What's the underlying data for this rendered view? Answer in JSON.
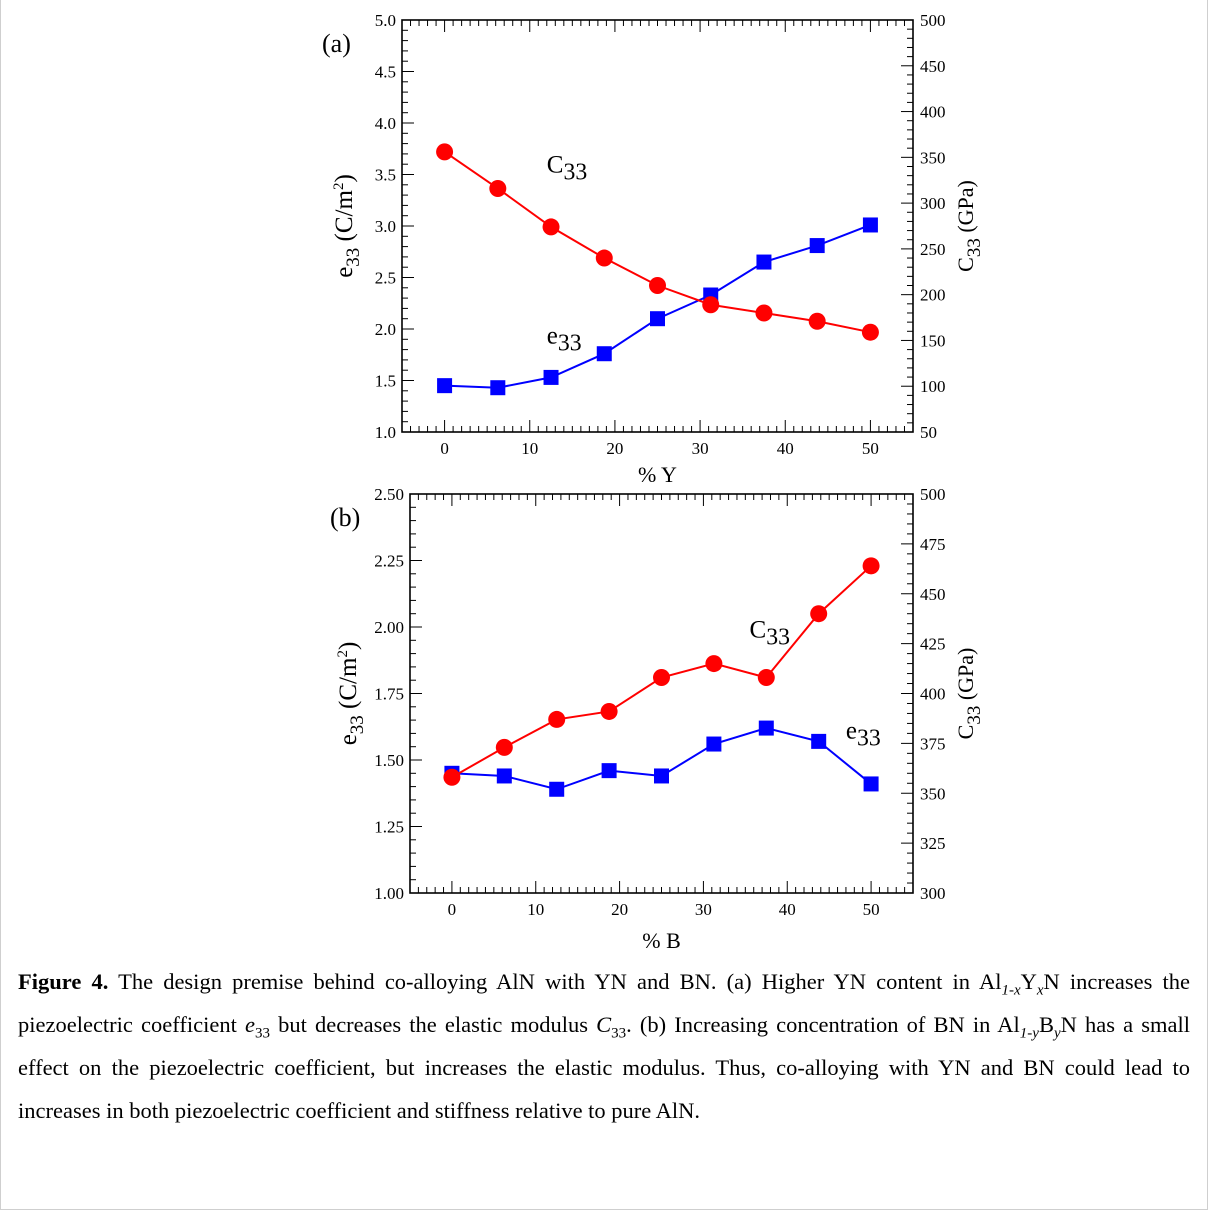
{
  "chart_data": [
    {
      "type": "line",
      "panel_label": "(a)",
      "xlabel": "% Y",
      "ylabel": "e33 (C/m2)",
      "y2label": "C33 (GPa)",
      "xlim": [
        -5,
        55
      ],
      "ylim": [
        1.0,
        5.0
      ],
      "y2lim": [
        50,
        500
      ],
      "x_ticks": [
        0,
        10,
        20,
        30,
        40,
        50
      ],
      "y_ticks": [
        "1.0",
        "1.5",
        "2.0",
        "2.5",
        "3.0",
        "3.5",
        "4.0",
        "4.5",
        "5.0"
      ],
      "y2_ticks": [
        "50",
        "100",
        "150",
        "200",
        "250",
        "300",
        "350",
        "400",
        "450",
        "500"
      ],
      "x": [
        0,
        6.25,
        12.5,
        18.75,
        25,
        31.25,
        37.5,
        43.75,
        50
      ],
      "series": [
        {
          "name": "e33",
          "axis": "left",
          "color": "#0000ff",
          "marker": "square",
          "values": [
            1.45,
            1.43,
            1.53,
            1.76,
            2.1,
            2.33,
            2.65,
            2.81,
            3.01
          ]
        },
        {
          "name": "C33",
          "axis": "right",
          "color": "#ff0000",
          "marker": "circle",
          "values": [
            356,
            316,
            274,
            240,
            210,
            189,
            180,
            171,
            159
          ]
        }
      ],
      "annotations": [
        {
          "text": "C33",
          "x": 12.0,
          "y": 3.52
        },
        {
          "text": "e33",
          "x": 12.0,
          "y": 1.86
        }
      ]
    },
    {
      "type": "line",
      "panel_label": "(b)",
      "xlabel": "% B",
      "ylabel": "e33 (C/m2)",
      "y2label": "C33 (GPa)",
      "xlim": [
        -5,
        55
      ],
      "ylim": [
        1.0,
        2.5
      ],
      "y2lim": [
        300,
        500
      ],
      "x_ticks": [
        0,
        10,
        20,
        30,
        40,
        50
      ],
      "y_ticks": [
        "1.00",
        "1.25",
        "1.50",
        "1.75",
        "2.00",
        "2.25",
        "2.50"
      ],
      "y2_ticks": [
        "300",
        "325",
        "350",
        "375",
        "400",
        "425",
        "450",
        "475",
        "500"
      ],
      "x": [
        0,
        6.25,
        12.5,
        18.75,
        25,
        31.25,
        37.5,
        43.75,
        50
      ],
      "series": [
        {
          "name": "e33",
          "axis": "left",
          "color": "#0000ff",
          "marker": "square",
          "values": [
            1.45,
            1.44,
            1.39,
            1.46,
            1.44,
            1.56,
            1.62,
            1.57,
            1.41
          ]
        },
        {
          "name": "C33",
          "axis": "right",
          "color": "#ff0000",
          "marker": "circle",
          "values": [
            358,
            373,
            387,
            391,
            408,
            415,
            408,
            440,
            464
          ]
        }
      ],
      "annotations": [
        {
          "text": "C33",
          "x": 35.5,
          "y": 1.96
        },
        {
          "text": "e33",
          "x": 47.0,
          "y": 1.58
        }
      ]
    }
  ],
  "caption": {
    "label": "Figure 4.",
    "text_1": " The design premise behind co-alloying AlN with YN and BN. (a) Higher YN content in Al",
    "sub_1": "1-x",
    "text_2": "Y",
    "sub_2": "x",
    "text_3": "N increases the piezoelectric coefficient ",
    "var_e": "e",
    "sub_e": "33",
    "text_4": " but decreases the elastic modulus ",
    "var_c": "C",
    "sub_c": "33",
    "text_5": ". (b) Increasing concentration of BN in Al",
    "sub_3": "1-y",
    "text_6": "B",
    "sub_4": "y",
    "text_7": "N has a small effect on the piezoelectric coefficient, but increases the elastic modulus. Thus, co-alloying with YN and BN could lead to increases in both piezoelectric coefficient and stiffness relative to pure AlN."
  }
}
